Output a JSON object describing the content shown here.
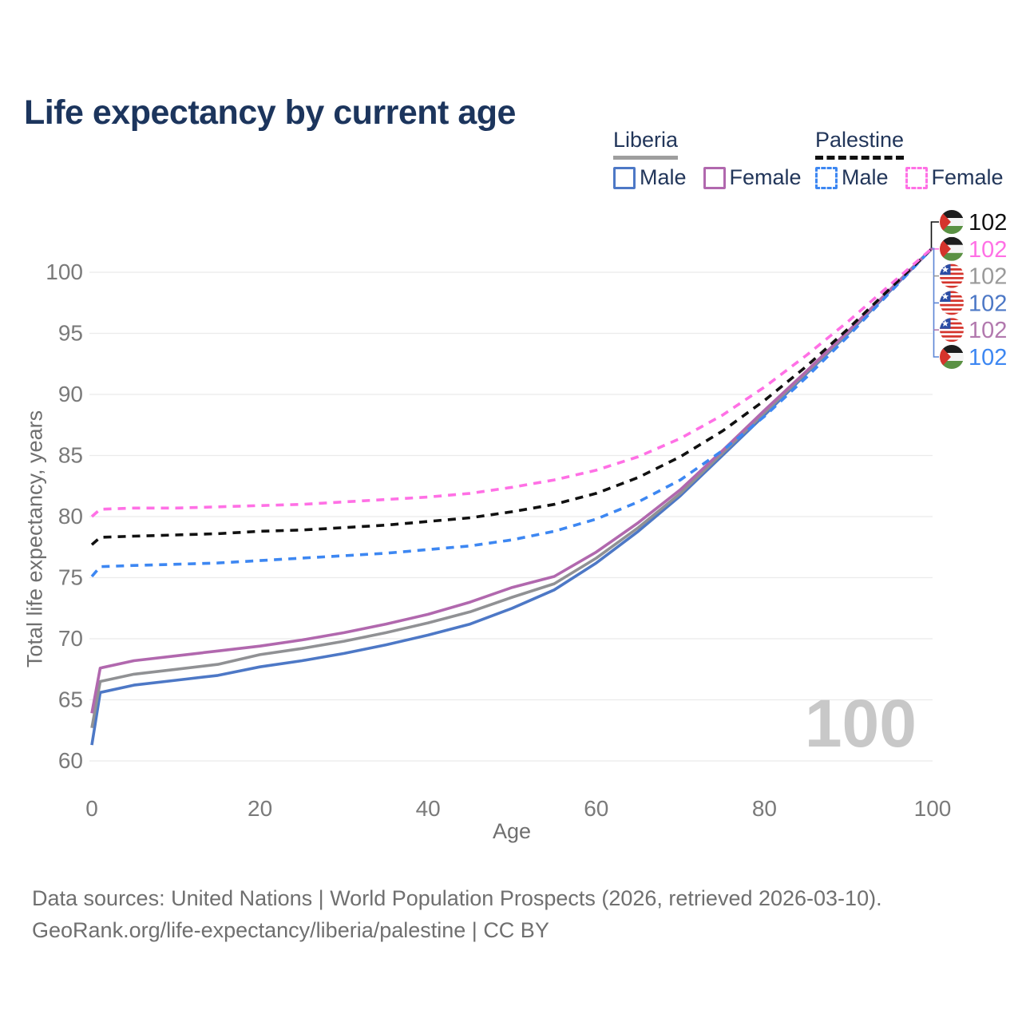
{
  "title": "Life expectancy by current age",
  "legend": {
    "groups": [
      {
        "label": "Liberia",
        "line_style": "solid",
        "underline_color": "#9e9e9e",
        "items": [
          {
            "label": "Male",
            "color": "#4d78c6"
          },
          {
            "label": "Female",
            "color": "#b168ae"
          }
        ]
      },
      {
        "label": "Palestine",
        "line_style": "dashed",
        "underline_color": "#111111",
        "items": [
          {
            "label": "Male",
            "color": "#3d87f2"
          },
          {
            "label": "Female",
            "color": "#ff70e5"
          }
        ]
      }
    ]
  },
  "axes": {
    "x_label": "Age",
    "y_label": "Total life expectancy, years"
  },
  "watermark": "100",
  "footer": {
    "line1": "Data sources: United Nations | World Population Prospects (2026, retrieved 2026-03-10).",
    "line2": "GeoRank.org/life-expectancy/liberia/palestine | CC BY"
  },
  "chart_data": {
    "type": "line",
    "title": "Life expectancy by current age",
    "xlabel": "Age",
    "ylabel": "Total life expectancy, years",
    "xlim": [
      0,
      100
    ],
    "ylim": [
      60,
      103
    ],
    "x_ticks": [
      0,
      20,
      40,
      60,
      80,
      100
    ],
    "y_ticks": [
      60,
      65,
      70,
      75,
      80,
      85,
      90,
      95,
      100
    ],
    "grid": "horizontal-only",
    "legend_position": "top-right",
    "ages": [
      0,
      1,
      5,
      10,
      15,
      20,
      25,
      30,
      35,
      40,
      45,
      50,
      55,
      60,
      65,
      70,
      75,
      80,
      85,
      90,
      95,
      100
    ],
    "series": [
      {
        "name": "Liberia Male",
        "country": "liberia",
        "sex": "male",
        "style": "solid",
        "color": "#4d78c6",
        "values": [
          61.3,
          65.6,
          66.2,
          66.6,
          67.0,
          67.7,
          68.2,
          68.8,
          69.5,
          70.3,
          71.2,
          72.5,
          74.0,
          76.2,
          78.8,
          81.7,
          85.0,
          88.3,
          91.7,
          95.0,
          98.5,
          102
        ]
      },
      {
        "name": "Liberia Both sexes",
        "country": "liberia",
        "sex": "total",
        "style": "solid",
        "color": "#909194",
        "values": [
          62.7,
          66.5,
          67.1,
          67.5,
          67.9,
          68.7,
          69.2,
          69.8,
          70.5,
          71.3,
          72.2,
          73.4,
          74.5,
          76.6,
          79.1,
          81.9,
          85.2,
          88.5,
          91.8,
          95.1,
          98.6,
          102
        ]
      },
      {
        "name": "Liberia Female",
        "country": "liberia",
        "sex": "female",
        "style": "solid",
        "color": "#b168ae",
        "values": [
          63.9,
          67.6,
          68.2,
          68.6,
          69.0,
          69.4,
          69.9,
          70.5,
          71.2,
          72.0,
          73.0,
          74.2,
          75.1,
          77.1,
          79.5,
          82.2,
          85.4,
          88.7,
          91.9,
          95.2,
          98.6,
          102
        ]
      },
      {
        "name": "Palestine Male",
        "country": "palestine",
        "sex": "male",
        "style": "dashed",
        "color": "#3d87f2",
        "values": [
          75.1,
          75.9,
          76.0,
          76.1,
          76.2,
          76.4,
          76.6,
          76.8,
          77.0,
          77.3,
          77.6,
          78.1,
          78.8,
          79.8,
          81.2,
          83.0,
          85.4,
          88.2,
          91.4,
          94.8,
          98.4,
          102
        ]
      },
      {
        "name": "Palestine Both sexes",
        "country": "palestine",
        "sex": "total",
        "style": "dashed",
        "color": "#111111",
        "values": [
          77.7,
          78.3,
          78.4,
          78.5,
          78.6,
          78.8,
          78.9,
          79.1,
          79.3,
          79.6,
          79.9,
          80.4,
          81.0,
          81.9,
          83.2,
          84.9,
          87.0,
          89.5,
          92.3,
          95.4,
          98.7,
          102
        ]
      },
      {
        "name": "Palestine Female",
        "country": "palestine",
        "sex": "female",
        "style": "dashed",
        "color": "#ff70e5",
        "values": [
          80.0,
          80.6,
          80.7,
          80.7,
          80.8,
          80.9,
          81.0,
          81.2,
          81.4,
          81.6,
          81.9,
          82.4,
          83.0,
          83.8,
          84.9,
          86.4,
          88.3,
          90.6,
          93.2,
          96.0,
          99.0,
          102
        ]
      }
    ],
    "end_labels": [
      {
        "flag": "palestine",
        "text": "102",
        "color": "#111111"
      },
      {
        "flag": "palestine",
        "text": "102",
        "color": "#ff70e5"
      },
      {
        "flag": "liberia",
        "text": "102",
        "color": "#9a9a9a"
      },
      {
        "flag": "liberia",
        "text": "102",
        "color": "#4d78c6"
      },
      {
        "flag": "liberia",
        "text": "102",
        "color": "#b279ae"
      },
      {
        "flag": "palestine",
        "text": "102",
        "color": "#3d87f2"
      }
    ]
  }
}
